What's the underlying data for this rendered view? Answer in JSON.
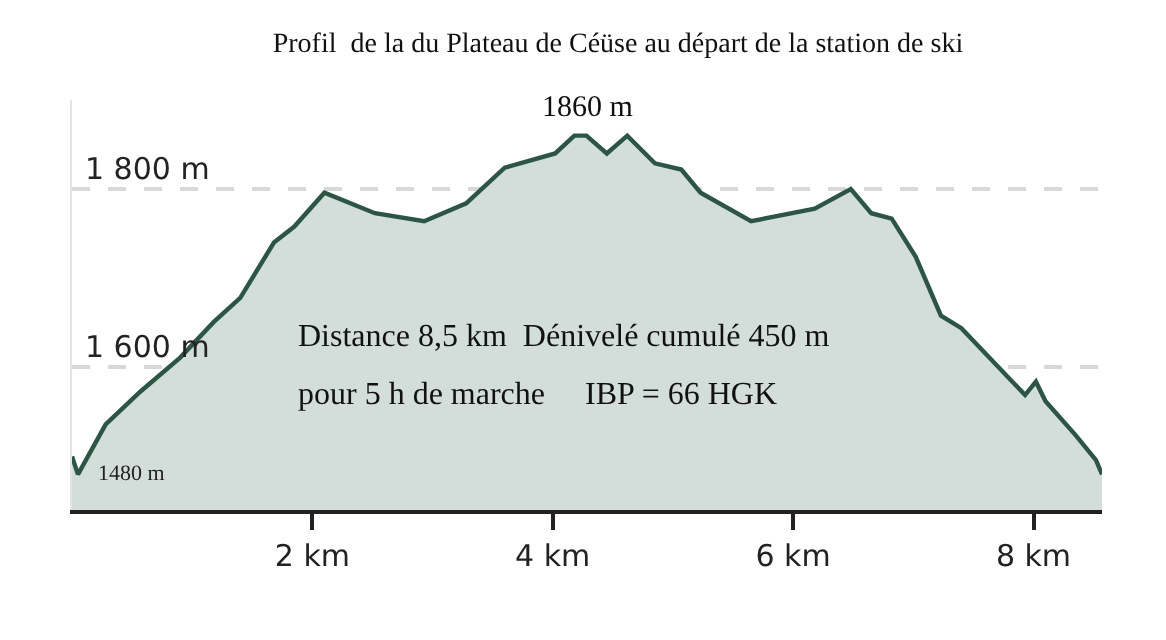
{
  "chart_data": {
    "type": "area",
    "title": "Profil  de la du Plateau de Céüse au départ de la station de ski",
    "x": [
      0,
      0.05,
      0.28,
      0.57,
      0.9,
      1.18,
      1.4,
      1.68,
      1.85,
      2.1,
      2.52,
      2.93,
      3.28,
      3.6,
      4.02,
      4.18,
      4.28,
      4.45,
      4.62,
      4.85,
      5.07,
      5.23,
      5.65,
      6.18,
      6.48,
      6.65,
      6.82,
      7.02,
      7.23,
      7.4,
      7.93,
      8.02,
      8.1,
      8.35,
      8.52,
      8.57
    ],
    "series": [
      {
        "color": "#2d5545",
        "values": [
          1500,
          1480,
          1536,
          1573,
          1611,
          1651,
          1678,
          1740,
          1758,
          1796,
          1773,
          1764,
          1784,
          1824,
          1840,
          1860,
          1860,
          1840,
          1860,
          1829,
          1822,
          1796,
          1764,
          1778,
          1800,
          1773,
          1767,
          1724,
          1658,
          1644,
          1569,
          1584,
          1562,
          1524,
          1496,
          1480
        ]
      }
    ],
    "xlim": [
      0,
      8.57
    ],
    "ylim": [
      1440,
      1900
    ],
    "xticks": [
      {
        "value": 2,
        "label": "2 km"
      },
      {
        "value": 4,
        "label": "4 km"
      },
      {
        "value": 6,
        "label": "6 km"
      },
      {
        "value": 8,
        "label": "8 km"
      }
    ],
    "yticks": [
      {
        "value": 1600,
        "label": "1 600 m"
      },
      {
        "value": 1800,
        "label": "1 800 m"
      }
    ],
    "grid": "y",
    "marker": "none",
    "line_style": "solid",
    "annotations": [
      {
        "text": "1860 m",
        "x": 4.3,
        "y": 1860
      },
      {
        "text": "1480 m",
        "x": 0.05,
        "y": 1480
      },
      "Distance 8,5 km  Dénivelé cumulé 450 m",
      "pour 5 h de marche     IBP = 66 HGK"
    ]
  }
}
